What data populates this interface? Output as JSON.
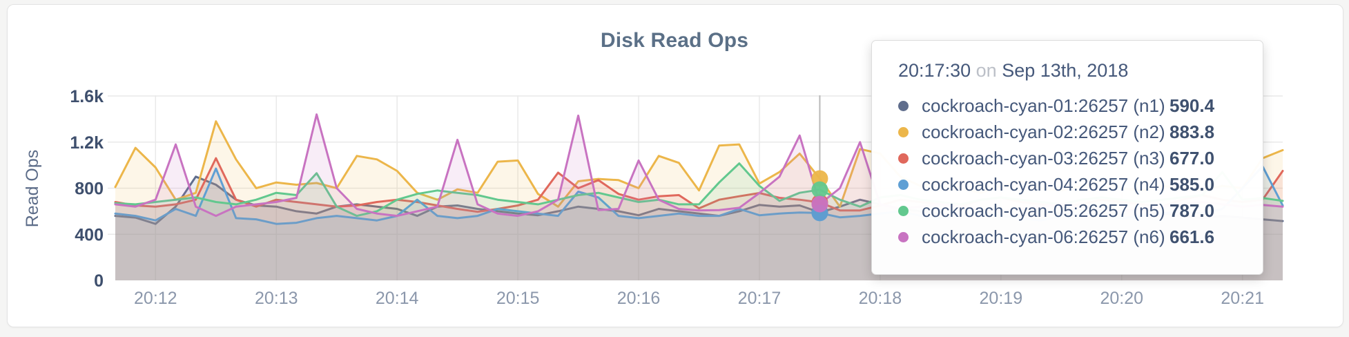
{
  "card": {
    "background": "#ffffff",
    "border_color": "#e3e3e3"
  },
  "chart_data": {
    "type": "line",
    "title": "Disk Read Ops",
    "xlabel": "",
    "ylabel": "Read Ops",
    "ylim": [
      0,
      1600
    ],
    "grid": true,
    "x_tick_labels": [
      "20:12",
      "20:13",
      "20:14",
      "20:15",
      "20:16",
      "20:17",
      "20:18",
      "20:19",
      "20:20",
      "20:21"
    ],
    "y_tick_values": [
      0,
      400,
      800,
      1200,
      1600
    ],
    "y_tick_labels": [
      "0",
      "400",
      "800",
      "1.2k",
      "1.6k"
    ],
    "time_step_seconds": 10,
    "start_time": "20:11:40",
    "end_time": "20:21:20",
    "grid_color": "#e9e9e9",
    "hover_line_color": "#b9b9b9",
    "axis_x_label_color": "#8b97ab",
    "axis_y_label_color": "#3e4f6d",
    "ylabel_color": "#5d6d89",
    "fill_opacity": 0.13,
    "series": [
      {
        "id": "n1",
        "name": "cockroach-cyan-01:26257 (n1)",
        "color": "#5f6d8c",
        "hover_value": "590.4",
        "values": [
          560,
          545,
          490,
          640,
          900,
          830,
          700,
          650,
          640,
          600,
          580,
          640,
          660,
          640,
          620,
          560,
          640,
          650,
          620,
          600,
          580,
          565,
          600,
          640,
          620,
          600,
          565,
          620,
          600,
          580,
          560,
          600,
          655,
          640,
          650,
          590.4,
          640,
          700,
          660,
          620,
          600,
          580,
          560,
          580,
          600,
          620,
          600,
          580,
          560,
          580,
          600,
          620,
          580,
          560,
          540,
          560,
          545,
          530,
          515
        ]
      },
      {
        "id": "n2",
        "name": "cockroach-cyan-02:26257 (n2)",
        "color": "#ecb64a",
        "hover_value": "883.8",
        "values": [
          810,
          1150,
          980,
          700,
          760,
          1380,
          1050,
          800,
          850,
          830,
          845,
          800,
          1080,
          1050,
          950,
          760,
          700,
          790,
          760,
          1030,
          1040,
          750,
          640,
          860,
          880,
          870,
          800,
          1080,
          1020,
          780,
          1170,
          1180,
          840,
          940,
          1100,
          883.8,
          640,
          1140,
          1100,
          900,
          820,
          860,
          800,
          760,
          820,
          860,
          800,
          780,
          820,
          860,
          800,
          780,
          820,
          800,
          780,
          820,
          800,
          1060,
          1130
        ]
      },
      {
        "id": "n3",
        "name": "cockroach-cyan-03:26257 (n3)",
        "color": "#e0685c",
        "hover_value": "677.0",
        "values": [
          680,
          650,
          640,
          660,
          700,
          1060,
          700,
          640,
          700,
          680,
          660,
          640,
          650,
          680,
          700,
          680,
          650,
          620,
          595,
          620,
          650,
          700,
          935,
          800,
          870,
          750,
          700,
          730,
          740,
          625,
          700,
          730,
          758,
          716,
          700,
          677,
          607,
          607,
          650,
          700,
          680,
          660,
          640,
          700,
          720,
          680,
          660,
          640,
          660,
          700,
          680,
          660,
          640,
          700,
          740,
          700,
          680,
          700,
          950
        ]
      },
      {
        "id": "n4",
        "name": "cockroach-cyan-04:26257 (n4)",
        "color": "#5f9fd4",
        "hover_value": "585.0",
        "values": [
          580,
          560,
          520,
          620,
          560,
          970,
          540,
          530,
          490,
          500,
          540,
          560,
          540,
          520,
          560,
          700,
          560,
          540,
          560,
          620,
          600,
          580,
          560,
          770,
          720,
          560,
          540,
          560,
          580,
          560,
          560,
          620,
          565,
          580,
          589,
          585,
          547,
          560,
          580,
          600,
          560,
          540,
          560,
          580,
          560,
          540,
          520,
          560,
          580,
          560,
          540,
          560,
          580,
          600,
          580,
          620,
          800,
          990,
          650
        ]
      },
      {
        "id": "n5",
        "name": "cockroach-cyan-05:26257 (n5)",
        "color": "#62c88e",
        "hover_value": "787.0",
        "values": [
          670,
          660,
          680,
          700,
          720,
          680,
          660,
          700,
          760,
          740,
          930,
          640,
          560,
          600,
          700,
          750,
          780,
          760,
          740,
          700,
          680,
          660,
          700,
          740,
          760,
          720,
          680,
          700,
          660,
          660,
          850,
          1015,
          820,
          690,
          760,
          787,
          700,
          640,
          720,
          740,
          700,
          680,
          660,
          700,
          720,
          700,
          680,
          660,
          700,
          720,
          700,
          680,
          700,
          720,
          740,
          940,
          700,
          715,
          690
        ]
      },
      {
        "id": "n6",
        "name": "cockroach-cyan-06:26257 (n6)",
        "color": "#c873c1",
        "hover_value": "661.6",
        "values": [
          660,
          640,
          700,
          1180,
          640,
          560,
          640,
          660,
          680,
          716,
          1440,
          800,
          620,
          580,
          560,
          600,
          640,
          1220,
          660,
          580,
          560,
          600,
          700,
          1430,
          610,
          620,
          1040,
          700,
          620,
          607,
          610,
          630,
          758,
          900,
          1257,
          661.6,
          800,
          1200,
          660,
          620,
          640,
          660,
          640,
          620,
          600,
          620,
          640,
          660,
          640,
          620,
          600,
          620,
          640,
          660,
          680,
          660,
          640,
          655,
          640
        ]
      }
    ],
    "hover": {
      "index": 35,
      "time": "20:17:30",
      "on_word": "on",
      "date": "Sep 13th, 2018"
    },
    "legend_position": "tooltip"
  }
}
